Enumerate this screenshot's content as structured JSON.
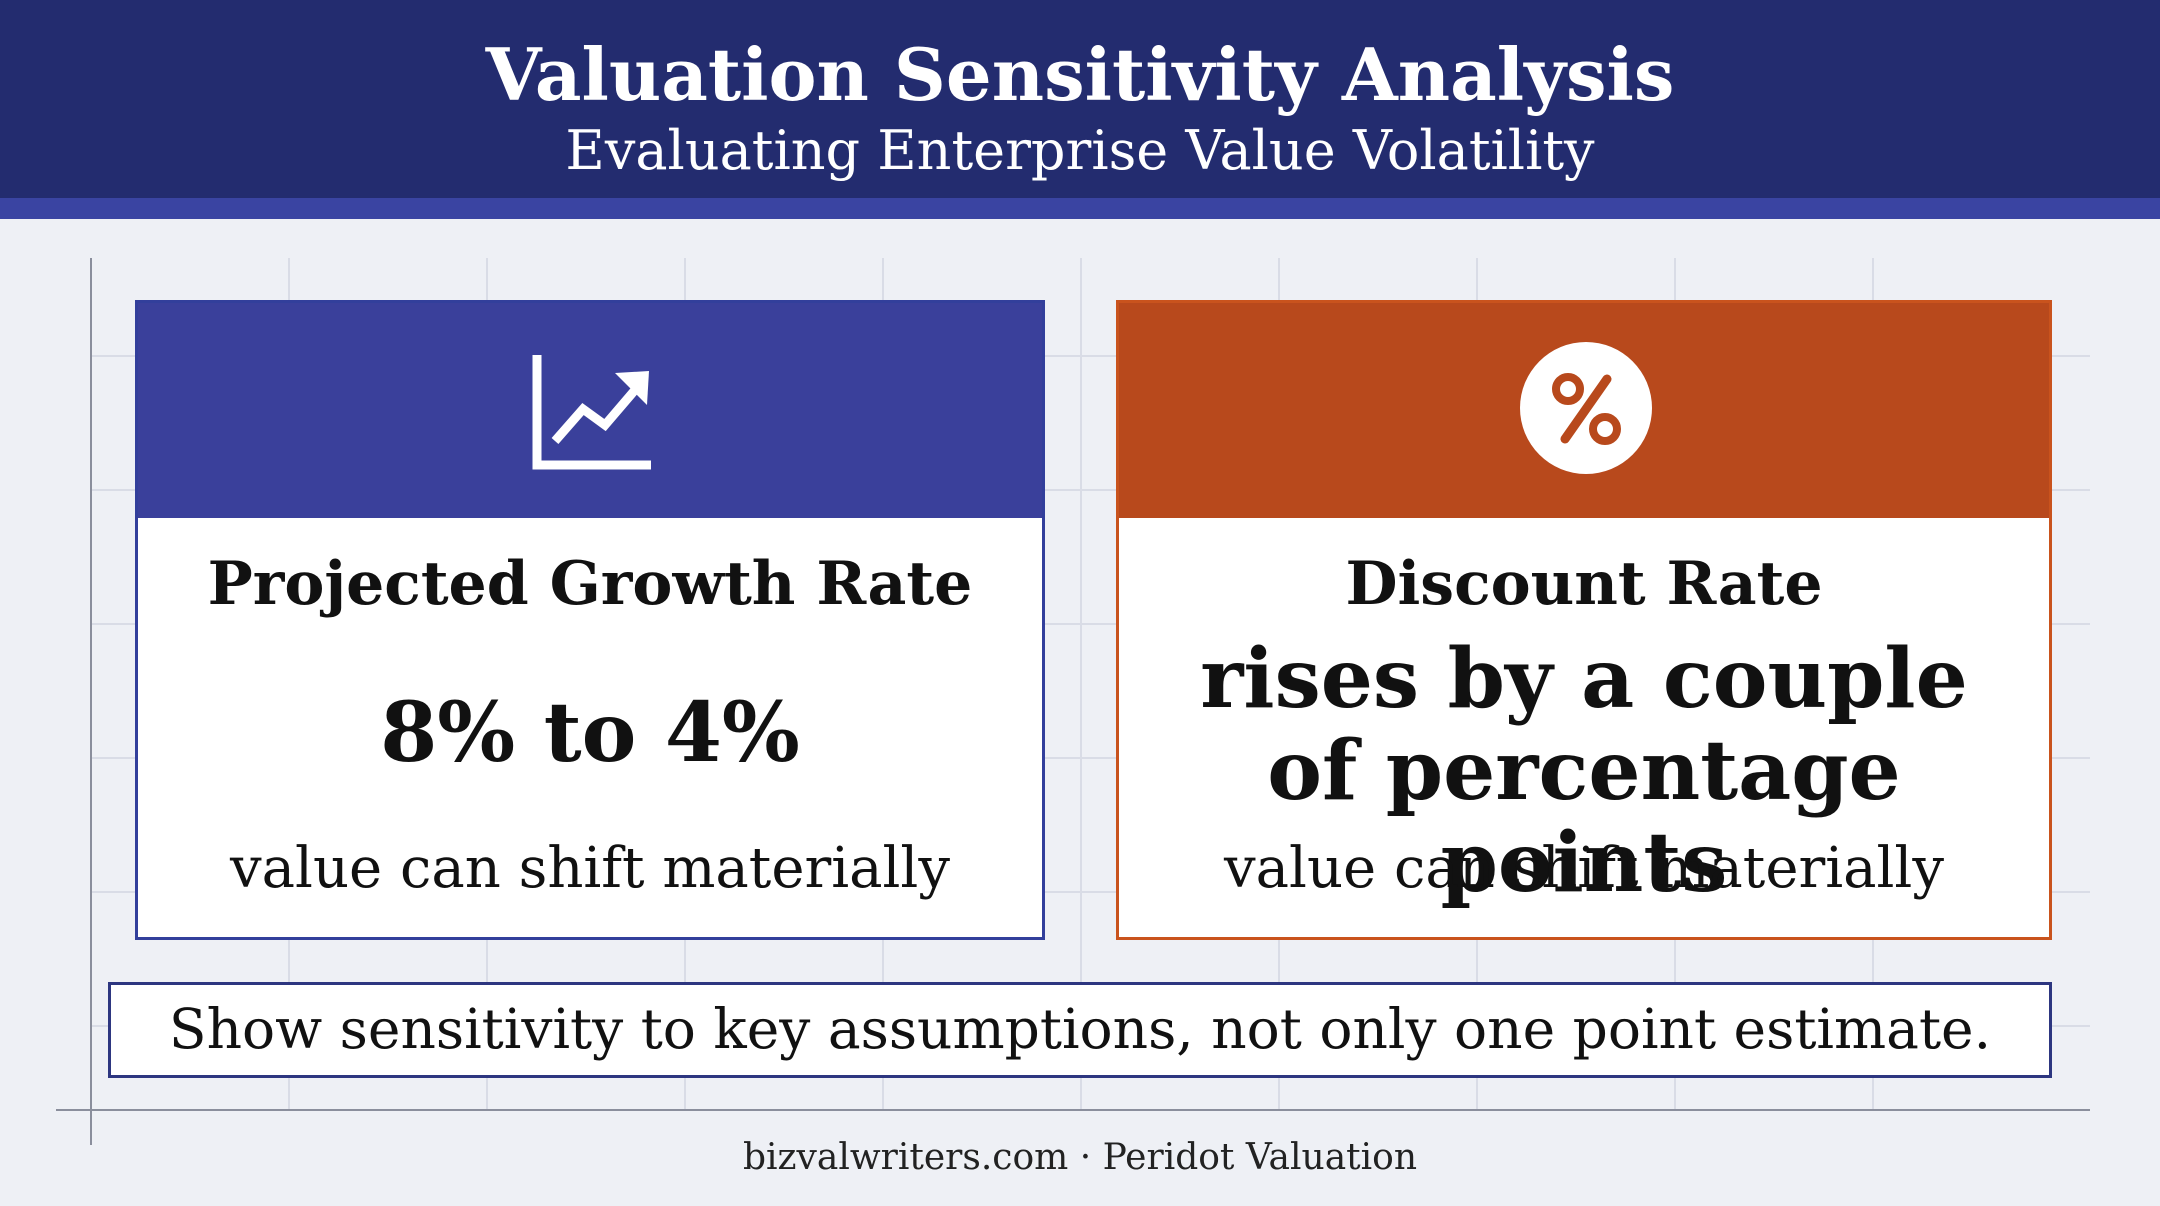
{
  "header": {
    "title": "Valuation Sensitivity Analysis",
    "subtitle": "Evaluating Enterprise Value Volatility"
  },
  "cards": [
    {
      "icon": "line-chart-up-icon",
      "heading": "Projected Growth Rate",
      "figure": "8% to 4%",
      "note": "value can shift materially",
      "accent": "#3a409b"
    },
    {
      "icon": "percent-circle-icon",
      "heading": "Discount Rate",
      "figure": "rises by a couple of percentage points",
      "note": "value can shift materially",
      "accent": "#b8491c"
    }
  ],
  "callout": "Show sensitivity to key assumptions, not only one point estimate.",
  "footer": "bizvalwriters.com · Peridot Valuation"
}
